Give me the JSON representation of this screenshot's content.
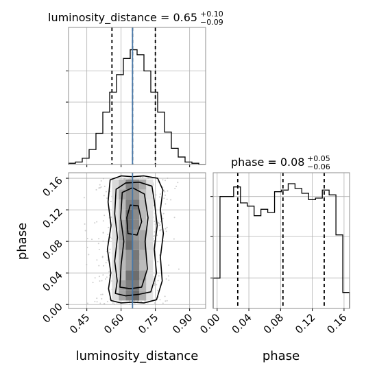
{
  "chart_data": {
    "type": "corner",
    "params": [
      "luminosity_distance",
      "phase"
    ],
    "grid": true,
    "panels": {
      "hist_luminosity_distance": {
        "type": "histogram",
        "title_param": "luminosity_distance",
        "title_value": "0.65",
        "title_plus": "+0.10",
        "title_minus": "−0.09",
        "title_equals": " = ",
        "xlim": [
          0.37,
          0.97
        ],
        "bin_edges": [
          0.37,
          0.4,
          0.43,
          0.46,
          0.49,
          0.52,
          0.55,
          0.58,
          0.61,
          0.64,
          0.67,
          0.7,
          0.73,
          0.76,
          0.79,
          0.82,
          0.85,
          0.88,
          0.91,
          0.94,
          0.97
        ],
        "density": [
          0.01,
          0.02,
          0.05,
          0.12,
          0.25,
          0.42,
          0.58,
          0.72,
          0.85,
          0.92,
          0.88,
          0.75,
          0.58,
          0.42,
          0.26,
          0.13,
          0.06,
          0.02,
          0.01,
          0.0
        ],
        "quantiles": [
          0.56,
          0.65,
          0.75
        ],
        "truth": 0.65
      },
      "hist_phase": {
        "type": "histogram",
        "title_param": "phase",
        "title_value": "0.08",
        "title_plus": "+0.05",
        "title_minus": "−0.06",
        "title_equals": " = ",
        "xlim": [
          -0.005,
          0.167
        ],
        "bin_edges": [
          -0.005,
          0.0036,
          0.0122,
          0.0208,
          0.0294,
          0.038,
          0.0466,
          0.0552,
          0.0638,
          0.0724,
          0.081,
          0.0896,
          0.0982,
          0.1068,
          0.1154,
          0.124,
          0.1326,
          0.1412,
          0.1498,
          0.1584,
          0.167
        ],
        "density": [
          0.19,
          0.7,
          0.7,
          0.76,
          0.66,
          0.64,
          0.58,
          0.62,
          0.6,
          0.73,
          0.74,
          0.78,
          0.75,
          0.72,
          0.68,
          0.69,
          0.74,
          0.71,
          0.46,
          0.1
        ],
        "quantiles": [
          0.026,
          0.083,
          0.135
        ],
        "truth": null
      },
      "scatter_phase_vs_luminosity_distance": {
        "type": "2d-density",
        "xlim": [
          0.37,
          0.97
        ],
        "ylim": [
          -0.005,
          0.167
        ],
        "truth_x": 0.65,
        "contours": [
          [
            [
              0.556,
              0.005
            ],
            [
              0.6,
              0.002
            ],
            [
              0.65,
              0.003
            ],
            [
              0.7,
              0.002
            ],
            [
              0.755,
              0.006
            ],
            [
              0.78,
              0.03
            ],
            [
              0.772,
              0.06
            ],
            [
              0.785,
              0.09
            ],
            [
              0.772,
              0.12
            ],
            [
              0.783,
              0.145
            ],
            [
              0.76,
              0.16
            ],
            [
              0.7,
              0.163
            ],
            [
              0.65,
              0.162
            ],
            [
              0.6,
              0.163
            ],
            [
              0.552,
              0.158
            ],
            [
              0.543,
              0.13
            ],
            [
              0.556,
              0.1
            ],
            [
              0.54,
              0.07
            ],
            [
              0.555,
              0.04
            ],
            [
              0.545,
              0.02
            ]
          ],
          [
            [
              0.575,
              0.014
            ],
            [
              0.62,
              0.011
            ],
            [
              0.68,
              0.013
            ],
            [
              0.73,
              0.016
            ],
            [
              0.755,
              0.04
            ],
            [
              0.745,
              0.07
            ],
            [
              0.758,
              0.1
            ],
            [
              0.746,
              0.13
            ],
            [
              0.735,
              0.15
            ],
            [
              0.68,
              0.155
            ],
            [
              0.62,
              0.154
            ],
            [
              0.578,
              0.146
            ],
            [
              0.572,
              0.115
            ],
            [
              0.584,
              0.085
            ],
            [
              0.572,
              0.055
            ],
            [
              0.583,
              0.03
            ]
          ],
          [
            [
              0.595,
              0.022
            ],
            [
              0.64,
              0.02
            ],
            [
              0.69,
              0.022
            ],
            [
              0.715,
              0.045
            ],
            [
              0.705,
              0.08
            ],
            [
              0.718,
              0.11
            ],
            [
              0.702,
              0.14
            ],
            [
              0.65,
              0.148
            ],
            [
              0.605,
              0.142
            ],
            [
              0.598,
              0.11
            ],
            [
              0.612,
              0.08
            ],
            [
              0.6,
              0.05
            ]
          ],
          [
            [
              0.63,
              0.09
            ],
            [
              0.67,
              0.088
            ],
            [
              0.69,
              0.105
            ],
            [
              0.675,
              0.125
            ],
            [
              0.64,
              0.126
            ],
            [
              0.625,
              0.11
            ]
          ]
        ],
        "cells_value_range": [
          0,
          1
        ]
      }
    },
    "axes": {
      "x_bottom_left": {
        "label": "luminosity_distance",
        "ticks": [
          0.45,
          0.6,
          0.75,
          0.9
        ],
        "tick_labels": [
          "0.45",
          "0.60",
          "0.75",
          "0.90"
        ]
      },
      "x_bottom_right": {
        "label": "phase",
        "ticks": [
          0.0,
          0.04,
          0.08,
          0.12,
          0.16
        ],
        "tick_labels": [
          "0.00",
          "0.04",
          "0.08",
          "0.12",
          "0.16"
        ]
      },
      "y_left": {
        "label": "phase",
        "ticks": [
          0.0,
          0.04,
          0.08,
          0.12,
          0.16
        ],
        "tick_labels": [
          "0.00",
          "0.04",
          "0.08",
          "0.12",
          "0.16"
        ]
      }
    },
    "colors": {
      "line": "#000000",
      "truth": "#4878a8",
      "grid": "#b0b0b0",
      "points": "#b8b8b8"
    }
  }
}
